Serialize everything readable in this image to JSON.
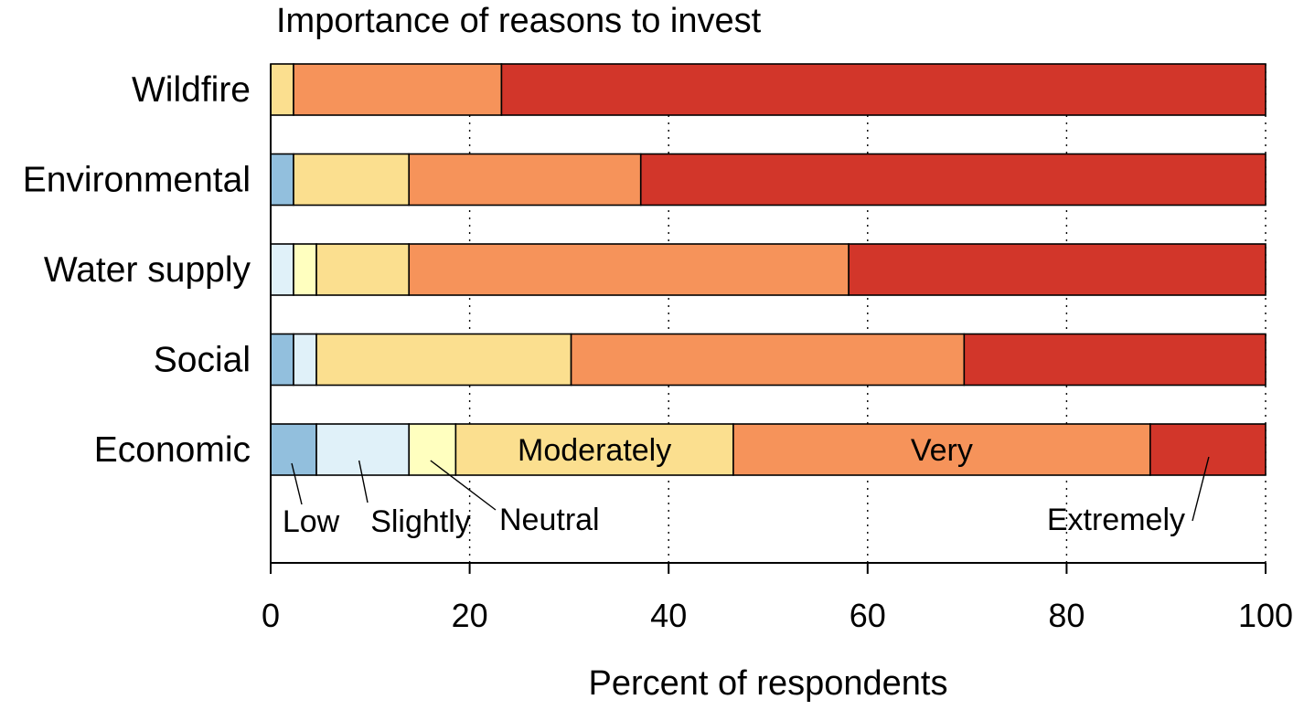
{
  "chart_data": {
    "type": "bar",
    "orientation": "horizontal",
    "stacked": true,
    "title": "Importance of reasons to invest",
    "xlabel": "Percent of respondents",
    "ylabel": "",
    "xlim": [
      0,
      100
    ],
    "xticks": [
      0,
      20,
      40,
      60,
      80,
      100
    ],
    "xtick_labels": [
      "0",
      "20",
      "40",
      "60",
      "80",
      "100"
    ],
    "grid": "vertical dotted",
    "categories": [
      "Wildfire",
      "Environmental",
      "Water supply",
      "Social",
      "Economic"
    ],
    "series": [
      {
        "name": "Low",
        "color": "#92bfdd",
        "values": [
          0,
          2.3,
          0,
          2.3,
          4.6
        ]
      },
      {
        "name": "Slightly",
        "color": "#e0f1f9",
        "values": [
          0,
          0,
          2.3,
          2.3,
          9.3
        ]
      },
      {
        "name": "Neutral",
        "color": "#ffffbf",
        "values": [
          0,
          0,
          2.3,
          0,
          4.7
        ]
      },
      {
        "name": "Moderately",
        "color": "#fbdf8f",
        "values": [
          2.3,
          11.6,
          9.3,
          25.6,
          27.9
        ]
      },
      {
        "name": "Very",
        "color": "#f6935a",
        "values": [
          20.9,
          23.3,
          44.2,
          39.5,
          41.9
        ]
      },
      {
        "name": "Extremely",
        "color": "#d2362a",
        "values": [
          76.8,
          62.8,
          41.9,
          30.3,
          11.6
        ]
      }
    ],
    "bar_labels": [
      {
        "category": "Economic",
        "series": "Moderately",
        "text": "Moderately"
      },
      {
        "category": "Economic",
        "series": "Very",
        "text": "Very"
      }
    ],
    "annotations": [
      {
        "text": "Low",
        "category": "Economic",
        "series": "Low"
      },
      {
        "text": "Slightly",
        "category": "Economic",
        "series": "Slightly"
      },
      {
        "text": "Neutral",
        "category": "Economic",
        "series": "Neutral"
      },
      {
        "text": "Extremely",
        "category": "Economic",
        "series": "Extremely"
      }
    ]
  }
}
